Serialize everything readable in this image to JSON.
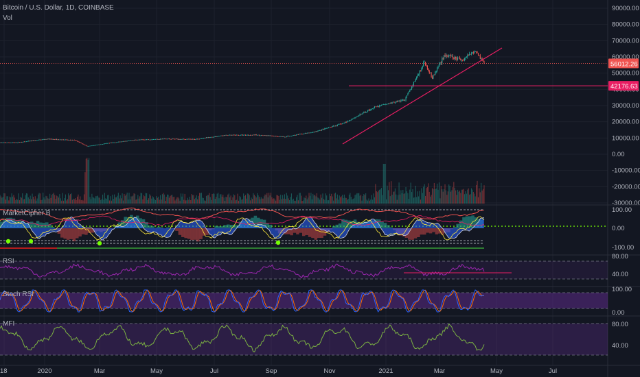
{
  "header": {
    "symbol_line": "Bitcoin / U.S. Dollar, 1D, COINBASE",
    "volume_label": "Vol"
  },
  "price_axis": {
    "currency": "USD",
    "ticks": [
      "90000.00",
      "80000.00",
      "70000.00",
      "60000.00",
      "50000.00",
      "40000.00",
      "30000.00",
      "20000.00",
      "10000.00",
      "0.00",
      "-10000.00",
      "-20000.00",
      "-30000.00"
    ]
  },
  "price_tags": {
    "last": "56012.26",
    "level": "42176.63"
  },
  "panels": {
    "mcb": {
      "label": "MarketCipher B",
      "ticks": [
        "100.00",
        "0.00",
        "-100.00"
      ]
    },
    "rsi": {
      "label": "RSI",
      "ticks": [
        "80.00",
        "40.00"
      ]
    },
    "stoch": {
      "label": "Stoch RSI",
      "ticks": [
        "100.00",
        "0.00"
      ]
    },
    "mfi": {
      "label": "MFI",
      "ticks": [
        "80.00",
        "40.00"
      ]
    }
  },
  "time_axis": {
    "labels": [
      "18",
      "2020",
      "Mar",
      "May",
      "Jul",
      "Sep",
      "Nov",
      "2021",
      "Mar",
      "May",
      "Jul"
    ]
  },
  "colors": {
    "background": "#131722",
    "grid": "#1e222d",
    "candle_up": "#26a69a",
    "candle_down": "#ef5350",
    "trendline": "#e91e63",
    "last_price": "#ef5350",
    "rsi": "#9c27b0",
    "stoch_k": "#2962ff",
    "stoch_d": "#ff6d00",
    "mfi": "#7cb342",
    "band": "#5b2a86"
  },
  "chart_data": [
    {
      "type": "candlestick",
      "title": "Bitcoin / U.S. Dollar, 1D, COINBASE",
      "ylabel": "USD",
      "ylim": [
        -30000,
        90000
      ],
      "x_range": [
        "2019-12",
        "2021-07"
      ],
      "series": [
        {
          "name": "Bitcoin / U.S. Dollar",
          "dates": [
            "2019-12-15",
            "2020-01-01",
            "2020-02-01",
            "2020-03-01",
            "2020-03-13",
            "2020-04-01",
            "2020-05-01",
            "2020-06-01",
            "2020-07-01",
            "2020-08-01",
            "2020-09-01",
            "2020-10-01",
            "2020-11-01",
            "2020-12-01",
            "2021-01-01",
            "2021-01-20",
            "2021-02-01",
            "2021-02-21",
            "2021-03-01",
            "2021-03-13",
            "2021-04-01",
            "2021-04-14",
            "2021-04-23"
          ],
          "values": [
            7200,
            7200,
            9400,
            8600,
            4900,
            6600,
            8800,
            9500,
            9200,
            11700,
            11900,
            10800,
            13800,
            19300,
            29000,
            32000,
            33500,
            57000,
            47000,
            61000,
            58000,
            64500,
            56012
          ]
        }
      ],
      "annotations": {
        "horizontal_level": 42176.63,
        "last_price": 56012.26,
        "trendline": {
          "from": [
            "2020-11-20",
            7000
          ],
          "to": [
            "2021-04-28",
            65000
          ]
        }
      }
    },
    {
      "type": "bar",
      "title": "Vol",
      "note": "volume histogram under price pane"
    },
    {
      "type": "line",
      "title": "MarketCipher B",
      "ylim": [
        -100,
        100
      ],
      "ticks": [
        100,
        0,
        -100
      ]
    },
    {
      "type": "line",
      "title": "RSI",
      "bands": [
        70,
        30
      ],
      "ticks": [
        80,
        40
      ]
    },
    {
      "type": "line",
      "title": "Stoch RSI",
      "bands": [
        80,
        20
      ],
      "ticks": [
        100,
        0
      ]
    },
    {
      "type": "line",
      "title": "MFI",
      "bands": [
        80,
        20
      ],
      "ticks": [
        80,
        40
      ]
    }
  ]
}
